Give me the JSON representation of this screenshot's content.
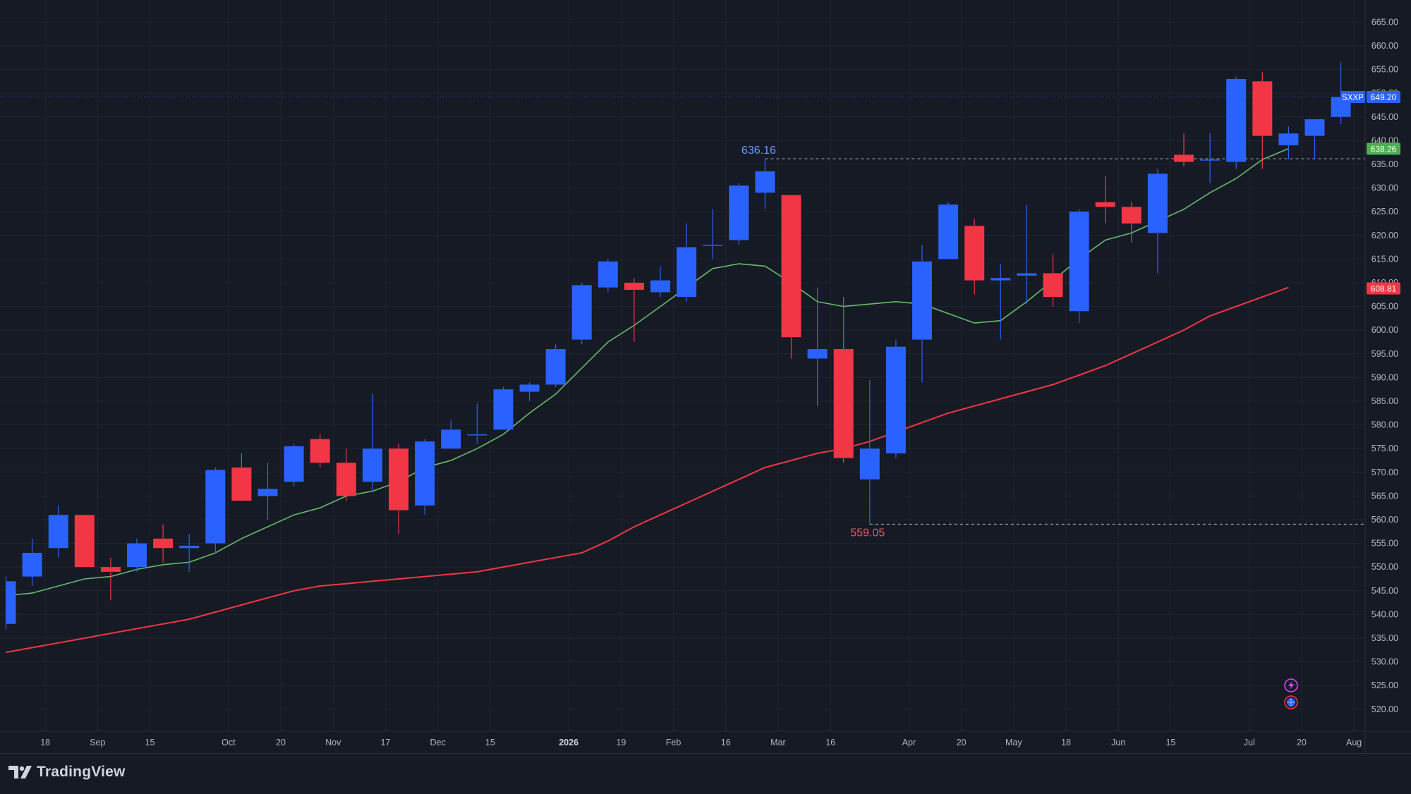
{
  "brand": {
    "name": "TradingView"
  },
  "colors": {
    "background": "#161a25",
    "up": "#2962ff",
    "down": "#f23645",
    "ema_fast": "#66bb6a",
    "ema_slow": "#f23645",
    "grid": "#202430",
    "axis_text": "#b2b5be"
  },
  "chart_data": {
    "type": "candlestick",
    "symbol": "SXXP",
    "ylim": [
      517,
      667
    ],
    "y_ticks": [
      "520.00",
      "525.00",
      "530.00",
      "535.00",
      "540.00",
      "545.00",
      "550.00",
      "555.00",
      "560.00",
      "565.00",
      "570.00",
      "575.00",
      "580.00",
      "585.00",
      "590.00",
      "595.00",
      "600.00",
      "605.00",
      "610.00",
      "615.00",
      "620.00",
      "625.00",
      "630.00",
      "635.00",
      "640.00",
      "645.00",
      "650.00",
      "655.00",
      "660.00",
      "665.00"
    ],
    "x_ticks": [
      {
        "label": "18",
        "i": 1.5
      },
      {
        "label": "Sep",
        "i": 3.5
      },
      {
        "label": "15",
        "i": 5.5
      },
      {
        "label": "Oct",
        "i": 8.5
      },
      {
        "label": "20",
        "i": 10.5
      },
      {
        "label": "Nov",
        "i": 12.5
      },
      {
        "label": "17",
        "i": 14.5
      },
      {
        "label": "Dec",
        "i": 16.5
      },
      {
        "label": "15",
        "i": 18.5
      },
      {
        "label": "2026",
        "i": 21.5
      },
      {
        "label": "19",
        "i": 23.5
      },
      {
        "label": "Feb",
        "i": 25.5
      },
      {
        "label": "16",
        "i": 27.5
      },
      {
        "label": "Mar",
        "i": 29.5
      },
      {
        "label": "16",
        "i": 31.5
      },
      {
        "label": "Apr",
        "i": 34.5
      },
      {
        "label": "20",
        "i": 36.5
      },
      {
        "label": "May",
        "i": 38.5
      },
      {
        "label": "18",
        "i": 40.5
      },
      {
        "label": "Jun",
        "i": 42.5
      },
      {
        "label": "15",
        "i": 44.5
      },
      {
        "label": "Jul",
        "i": 47.5
      },
      {
        "label": "20",
        "i": 49.5
      },
      {
        "label": "Aug",
        "i": 51.5
      }
    ],
    "candles": [
      {
        "o": 538,
        "h": 548,
        "l": 537,
        "c": 547
      },
      {
        "o": 548,
        "h": 556,
        "l": 546,
        "c": 553
      },
      {
        "o": 554,
        "h": 563,
        "l": 552,
        "c": 561
      },
      {
        "o": 561,
        "h": 561,
        "l": 550,
        "c": 550
      },
      {
        "o": 550,
        "h": 552,
        "l": 543,
        "c": 549
      },
      {
        "o": 550,
        "h": 556,
        "l": 549,
        "c": 555
      },
      {
        "o": 556,
        "h": 559,
        "l": 551,
        "c": 554
      },
      {
        "o": 554,
        "h": 557,
        "l": 549,
        "c": 554.5
      },
      {
        "o": 555,
        "h": 571,
        "l": 553,
        "c": 570.5
      },
      {
        "o": 571,
        "h": 574,
        "l": 564,
        "c": 564
      },
      {
        "o": 565,
        "h": 572,
        "l": 560,
        "c": 566.5
      },
      {
        "o": 568,
        "h": 576,
        "l": 567,
        "c": 575.5
      },
      {
        "o": 577,
        "h": 578,
        "l": 571,
        "c": 572
      },
      {
        "o": 572,
        "h": 575,
        "l": 564,
        "c": 565
      },
      {
        "o": 568,
        "h": 586.5,
        "l": 566,
        "c": 575
      },
      {
        "o": 575,
        "h": 576,
        "l": 557,
        "c": 562
      },
      {
        "o": 563,
        "h": 577,
        "l": 561,
        "c": 576.5
      },
      {
        "o": 575,
        "h": 581,
        "l": 575,
        "c": 579
      },
      {
        "o": 578,
        "h": 584.5,
        "l": 576,
        "c": 578
      },
      {
        "o": 579,
        "h": 588,
        "l": 579,
        "c": 587.5
      },
      {
        "o": 587,
        "h": 589,
        "l": 585,
        "c": 588.5
      },
      {
        "o": 588.5,
        "h": 597,
        "l": 588,
        "c": 596
      },
      {
        "o": 598,
        "h": 610,
        "l": 597,
        "c": 609.5
      },
      {
        "o": 609,
        "h": 615,
        "l": 608,
        "c": 614.5
      },
      {
        "o": 610,
        "h": 611,
        "l": 597.5,
        "c": 608.5
      },
      {
        "o": 608,
        "h": 613.5,
        "l": 607,
        "c": 610.5
      },
      {
        "o": 607,
        "h": 622.5,
        "l": 606,
        "c": 617.5
      },
      {
        "o": 618,
        "h": 625.5,
        "l": 615,
        "c": 618
      },
      {
        "o": 619,
        "h": 631,
        "l": 618,
        "c": 630.5
      },
      {
        "o": 629,
        "h": 636.16,
        "l": 625.5,
        "c": 633.5
      },
      {
        "o": 628.5,
        "h": 628.5,
        "l": 594,
        "c": 598.5
      },
      {
        "o": 594,
        "h": 609,
        "l": 584,
        "c": 596
      },
      {
        "o": 596,
        "h": 607,
        "l": 572,
        "c": 573
      },
      {
        "o": 568.5,
        "h": 589.5,
        "l": 559.05,
        "c": 575
      },
      {
        "o": 574,
        "h": 598,
        "l": 573,
        "c": 596.5
      },
      {
        "o": 598,
        "h": 618,
        "l": 589,
        "c": 614.5
      },
      {
        "o": 615,
        "h": 627,
        "l": 615,
        "c": 626.5
      },
      {
        "o": 622,
        "h": 623.5,
        "l": 607.5,
        "c": 610.5
      },
      {
        "o": 610.5,
        "h": 614,
        "l": 598,
        "c": 611
      },
      {
        "o": 611.5,
        "h": 626.5,
        "l": 605.5,
        "c": 612
      },
      {
        "o": 612,
        "h": 616,
        "l": 605,
        "c": 607
      },
      {
        "o": 604,
        "h": 625.5,
        "l": 601.5,
        "c": 625
      },
      {
        "o": 627,
        "h": 632.5,
        "l": 622.5,
        "c": 626
      },
      {
        "o": 626,
        "h": 627,
        "l": 618.5,
        "c": 622.5
      },
      {
        "o": 620.5,
        "h": 634,
        "l": 612,
        "c": 633
      },
      {
        "o": 637,
        "h": 641.5,
        "l": 634.5,
        "c": 635.5
      },
      {
        "o": 636,
        "h": 641.5,
        "l": 631,
        "c": 636
      },
      {
        "o": 635.5,
        "h": 653.5,
        "l": 634,
        "c": 653
      },
      {
        "o": 652.5,
        "h": 654.5,
        "l": 634,
        "c": 641
      },
      {
        "o": 639,
        "h": 643,
        "l": 636,
        "c": 641.5
      },
      {
        "o": 641,
        "h": 644.5,
        "l": 636,
        "c": 644.5
      },
      {
        "o": 645,
        "h": 656.5,
        "l": 643.5,
        "c": 649.2
      }
    ],
    "ema_fast": [
      544,
      544.5,
      546,
      547.5,
      548,
      549.5,
      550.5,
      551,
      553,
      556,
      558.5,
      561,
      562.5,
      565,
      566,
      568,
      571,
      572.5,
      575,
      578,
      582.5,
      586.5,
      592,
      597.5,
      601,
      605,
      609,
      613,
      614,
      613.5,
      610,
      606,
      605,
      605.5,
      606,
      605.5,
      603.5,
      601.5,
      602,
      606,
      610.5,
      615,
      619,
      620.5,
      623,
      625.5,
      629,
      632,
      636,
      638.3
    ],
    "ema_slow": [
      532,
      533,
      534,
      535,
      536,
      537,
      538,
      539,
      540.5,
      542,
      543.5,
      545,
      546,
      546.5,
      547,
      547.5,
      548,
      548.5,
      549,
      550,
      551,
      552,
      553,
      555.5,
      558.5,
      561,
      563.5,
      566,
      568.5,
      571,
      572.5,
      574,
      575,
      576.5,
      578.5,
      580.5,
      582.5,
      584,
      585.5,
      587,
      588.5,
      590.5,
      592.5,
      595,
      597.5,
      600,
      603,
      605,
      607,
      609
    ],
    "series": [
      {
        "name": "EMA (fast)",
        "last": 638.26
      },
      {
        "name": "EMA (slow)",
        "last": 608.81
      }
    ],
    "annotations": {
      "high": {
        "label": "636.16",
        "value": 636.16,
        "i": 29
      },
      "low": {
        "label": "559.05",
        "value": 559.05,
        "i": 33
      }
    },
    "price_labels": [
      {
        "tag": "SXXP",
        "value": "649.20",
        "kind": "last"
      },
      {
        "value": "638.26",
        "kind": "ema_fast"
      },
      {
        "value": "608.81",
        "kind": "ema_slow"
      }
    ],
    "grid": true,
    "legend": "none"
  }
}
